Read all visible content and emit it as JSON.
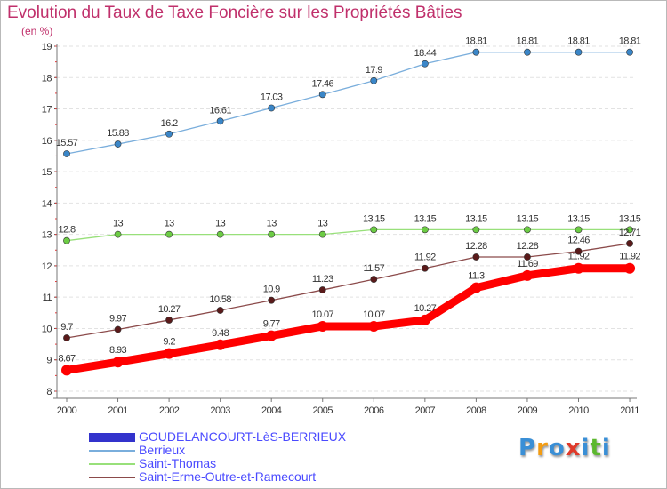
{
  "chart_data": {
    "type": "line",
    "title": "Evolution du Taux de Taxe Foncière sur les Propriétés Bâties",
    "ylabel": "(en %)",
    "xlabel": "",
    "ylim": [
      8,
      19
    ],
    "yticks": [
      8,
      9,
      10,
      11,
      12,
      13,
      14,
      15,
      16,
      17,
      18,
      19
    ],
    "categories": [
      "2000",
      "2001",
      "2002",
      "2003",
      "2004",
      "2005",
      "2006",
      "2007",
      "2008",
      "2009",
      "2010",
      "2011"
    ],
    "series": [
      {
        "name": "GOUDELANCOURT-LèS-BERRIEUX",
        "color": "#ff0000",
        "marker_color": "#ff0000",
        "legend_color": "#3333cc",
        "values": [
          8.67,
          8.93,
          9.2,
          9.48,
          9.77,
          10.07,
          10.07,
          10.27,
          11.3,
          11.69,
          11.92,
          11.92
        ],
        "labels": [
          "8.67",
          "8.93",
          "9.2",
          "9.48",
          "9.77",
          "10.07",
          "10.07",
          "10.27",
          "11.3",
          "11.69",
          "11.92",
          "11.92"
        ]
      },
      {
        "name": "Berrieux",
        "color": "#7aaedc",
        "marker_color": "#3a86c8",
        "legend_color": "#7aaedc",
        "values": [
          15.57,
          15.88,
          16.2,
          16.61,
          17.03,
          17.46,
          17.9,
          18.44,
          18.81,
          18.81,
          18.81,
          18.81
        ],
        "labels": [
          "15.57",
          "15.88",
          "16.2",
          "16.61",
          "17.03",
          "17.46",
          "17.9",
          "18.44",
          "18.81",
          "18.81",
          "18.81",
          "18.81"
        ]
      },
      {
        "name": "Saint-Thomas",
        "color": "#98e07a",
        "marker_color": "#6ccc44",
        "legend_color": "#98e07a",
        "values": [
          12.8,
          13,
          13,
          13,
          13,
          13,
          13.15,
          13.15,
          13.15,
          13.15,
          13.15,
          13.15
        ],
        "labels": [
          "12.8",
          "13",
          "13",
          "13",
          "13",
          "13",
          "13.15",
          "13.15",
          "13.15",
          "13.15",
          "13.15",
          "13.15"
        ]
      },
      {
        "name": "Saint-Erme-Outre-et-Ramecourt",
        "color": "#8b4a4a",
        "marker_color": "#5a1a1a",
        "legend_color": "#8b4a4a",
        "values": [
          9.7,
          9.97,
          10.27,
          10.58,
          10.9,
          11.23,
          11.57,
          11.92,
          12.28,
          12.28,
          12.46,
          12.71
        ],
        "labels": [
          "9.7",
          "9.97",
          "10.27",
          "10.58",
          "10.9",
          "11.23",
          "11.57",
          "11.92",
          "12.28",
          "12.28",
          "12.46",
          "12.71"
        ]
      }
    ]
  },
  "logo": {
    "letters": [
      "P",
      "r",
      "o",
      "x",
      "i",
      "t",
      "i"
    ],
    "colors": [
      "#3a8fd6",
      "#f39c12",
      "#3a8fd6",
      "#e03a2a",
      "#3a8fd6",
      "#5cb82e",
      "#3a8fd6"
    ]
  }
}
